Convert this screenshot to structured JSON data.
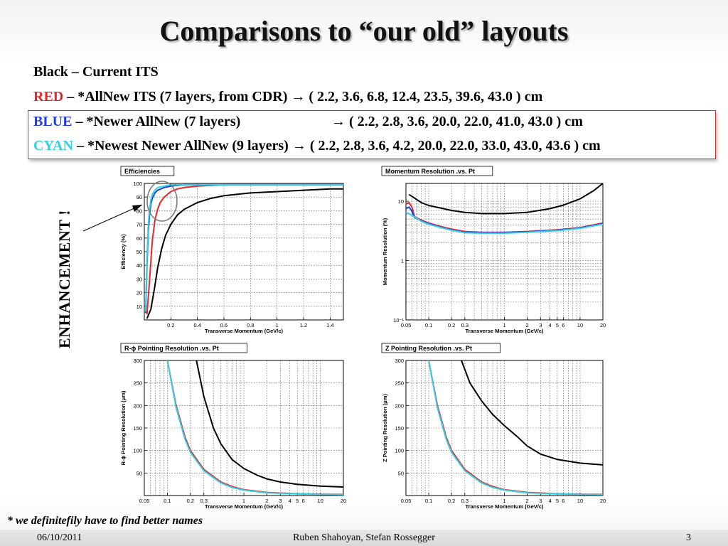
{
  "slide": {
    "title": "Comparisons to “our old” layouts",
    "legend": {
      "black": {
        "name": "Black",
        "text": " – Current ITS"
      },
      "red": {
        "name": "RED",
        "text": " – *AllNew ITS (7 layers, from CDR) ",
        "radii": "( 2.2, 3.6, 6.8,  12.4, 23.5,  39.6, 43.0 ) cm"
      },
      "blue": {
        "name": "BLUE",
        "text": " – *Newer AllNew (7 layers)",
        "radii": "( 2.2, 2.8, 3.6,  20.0, 22.0,  41.0, 43.0 ) cm"
      },
      "cyan": {
        "name": "CYAN",
        "text": " – *Newest Newer AllNew (9 layers) ",
        "radii": "( 2.2, 2.8, 3.6, 4.2,  20.0, 22.0,  33.0,  43.0, 43.6 ) cm"
      },
      "arrow": "→"
    },
    "enhancement": "ENHANCEMENT !",
    "footnote": "* we definitefily have to find better names",
    "footer": {
      "date": "06/10/2011",
      "authors": "Ruben Shahoyan, Stefan Rossegger",
      "page": "3"
    }
  },
  "colors": {
    "black": "#000000",
    "red": "#e8262a",
    "blue": "#1f3fe0",
    "cyan": "#33cfe6",
    "box": "#c8322e"
  },
  "chart_data": [
    {
      "id": "eff",
      "type": "line",
      "title": "Efficiencies",
      "xlabel": "Transverse Momentum (GeV/c)",
      "ylabel": "Efficiency (%)",
      "xlim": [
        0,
        1.5
      ],
      "ylim": [
        0,
        100
      ],
      "xscale": "linear",
      "yscale": "linear",
      "xticks": [
        0.2,
        0.4,
        0.6,
        0.8,
        1,
        1.2,
        1.4
      ],
      "yticks": [
        10,
        20,
        30,
        40,
        50,
        60,
        70,
        80,
        90,
        100
      ],
      "grid": true,
      "series": [
        {
          "color": "black",
          "x": [
            0.02,
            0.05,
            0.08,
            0.1,
            0.13,
            0.16,
            0.2,
            0.25,
            0.3,
            0.4,
            0.5,
            0.6,
            0.8,
            1.0,
            1.2,
            1.4,
            1.5
          ],
          "y": [
            1,
            8,
            25,
            38,
            52,
            62,
            70,
            77,
            81,
            86,
            89,
            91,
            93,
            94,
            95,
            96,
            96
          ]
        },
        {
          "color": "red",
          "x": [
            0.02,
            0.04,
            0.06,
            0.08,
            0.1,
            0.12,
            0.15,
            0.2,
            0.25,
            0.3,
            0.4,
            0.6,
            1.0,
            1.5
          ],
          "y": [
            4,
            30,
            58,
            73,
            81,
            86,
            90,
            94,
            96,
            97,
            98,
            99,
            99,
            99
          ]
        },
        {
          "color": "blue",
          "x": [
            0.01,
            0.02,
            0.03,
            0.04,
            0.05,
            0.06,
            0.08,
            0.1,
            0.15,
            0.2,
            0.3,
            0.5,
            1.0,
            1.5
          ],
          "y": [
            5,
            40,
            65,
            78,
            85,
            89,
            93,
            95,
            97,
            98,
            99,
            99,
            99,
            99
          ]
        },
        {
          "color": "cyan",
          "x": [
            0.01,
            0.02,
            0.03,
            0.04,
            0.05,
            0.06,
            0.08,
            0.1,
            0.15,
            0.2,
            0.3,
            0.5,
            1.0,
            1.5
          ],
          "y": [
            6,
            45,
            70,
            82,
            88,
            92,
            95,
            97,
            98,
            99,
            99,
            99,
            99,
            99
          ]
        }
      ]
    },
    {
      "id": "mom",
      "type": "line",
      "title": "Momentum Resolution .vs. Pt",
      "xlabel": "Transverse Momentum (GeV/c)",
      "ylabel": "Momentum Resolution (%)",
      "xlim": [
        0.05,
        20
      ],
      "ylim": [
        0.1,
        20
      ],
      "xscale": "log",
      "yscale": "log",
      "xticks": [
        0.05,
        0.1,
        0.2,
        0.3,
        1,
        2,
        3,
        4,
        5,
        6,
        10,
        20
      ],
      "xticklabels": [
        "0.05",
        "0.1",
        "0.2",
        "0.3",
        "1",
        "2",
        "3",
        "4",
        "5",
        "6",
        "10",
        "20"
      ],
      "yticks": [
        0.1,
        1,
        10
      ],
      "yticklabels": [
        "10⁻¹",
        "1",
        "10"
      ],
      "grid": true,
      "series": [
        {
          "color": "black",
          "x": [
            0.055,
            0.08,
            0.1,
            0.2,
            0.3,
            0.5,
            1,
            2,
            4,
            6,
            10,
            15,
            20
          ],
          "y": [
            13,
            9.5,
            8.5,
            7,
            6.5,
            6.2,
            6.2,
            6.5,
            7.5,
            8.6,
            11,
            15,
            20
          ]
        },
        {
          "color": "red",
          "x": [
            0.05,
            0.055,
            0.06,
            0.065,
            0.08,
            0.1,
            0.15,
            0.2,
            0.3,
            0.5,
            1,
            2,
            5,
            10,
            20
          ],
          "y": [
            9,
            9.5,
            8,
            5.5,
            4.8,
            4.3,
            3.7,
            3.4,
            3.1,
            3.0,
            3.0,
            3.1,
            3.3,
            3.6,
            4.3
          ]
        },
        {
          "color": "blue",
          "x": [
            0.05,
            0.055,
            0.06,
            0.065,
            0.08,
            0.1,
            0.15,
            0.2,
            0.3,
            0.5,
            1,
            2,
            5,
            10,
            20
          ],
          "y": [
            7.5,
            8,
            6.8,
            5.3,
            4.7,
            4.2,
            3.6,
            3.3,
            3.0,
            2.95,
            2.95,
            3.05,
            3.25,
            3.55,
            4.2
          ]
        },
        {
          "color": "cyan",
          "x": [
            0.05,
            0.06,
            0.08,
            0.1,
            0.15,
            0.2,
            0.3,
            0.5,
            1,
            2,
            5,
            10,
            20
          ],
          "y": [
            6.5,
            5.8,
            4.6,
            4.1,
            3.55,
            3.25,
            2.95,
            2.9,
            2.9,
            3.0,
            3.2,
            3.5,
            4.1
          ]
        }
      ]
    },
    {
      "id": "rphi",
      "type": "line",
      "title": "R-ϕ Pointing Resolution .vs. Pt",
      "xlabel": "Transverse Momentum (GeV/c)",
      "ylabel": "R-ϕ Pointing Resolution (μm)",
      "xlim": [
        0.05,
        20
      ],
      "ylim": [
        0,
        300
      ],
      "xscale": "log",
      "yscale": "linear",
      "xticks": [
        0.05,
        0.1,
        0.2,
        0.3,
        1,
        2,
        3,
        4,
        5,
        6,
        10,
        20
      ],
      "xticklabels": [
        "0.05",
        "0.1",
        "0.2",
        "0.3",
        "1",
        "2",
        "3",
        "4",
        "5",
        "6",
        "10",
        "20"
      ],
      "yticks": [
        50,
        100,
        150,
        200,
        250,
        300
      ],
      "grid": true,
      "series": [
        {
          "color": "black",
          "x": [
            0.24,
            0.3,
            0.4,
            0.5,
            0.7,
            1,
            1.5,
            2,
            3,
            5,
            10,
            20
          ],
          "y": [
            300,
            220,
            150,
            115,
            80,
            60,
            45,
            37,
            30,
            25,
            21,
            19
          ]
        },
        {
          "color": "red",
          "x": [
            0.1,
            0.13,
            0.17,
            0.2,
            0.3,
            0.5,
            0.7,
            1,
            2,
            5,
            10,
            20
          ],
          "y": [
            300,
            200,
            130,
            100,
            58,
            30,
            20,
            13,
            7,
            4,
            3,
            2.5
          ]
        },
        {
          "color": "cyan",
          "x": [
            0.1,
            0.13,
            0.17,
            0.2,
            0.3,
            0.5,
            0.7,
            1,
            2,
            5,
            10,
            20
          ],
          "y": [
            300,
            195,
            125,
            96,
            55,
            28,
            18,
            12,
            6,
            3.5,
            2.5,
            2
          ]
        }
      ]
    },
    {
      "id": "z",
      "type": "line",
      "title": "Z Pointing Resolution .vs. Pt",
      "xlabel": "Transverse Momentum (GeV/c)",
      "ylabel": "Z Pointing Resolution (μm)",
      "xlim": [
        0.05,
        20
      ],
      "ylim": [
        0,
        300
      ],
      "xscale": "log",
      "yscale": "linear",
      "xticks": [
        0.05,
        0.1,
        0.2,
        0.3,
        1,
        2,
        3,
        4,
        5,
        6,
        10,
        20
      ],
      "xticklabels": [
        "0.05",
        "0.1",
        "0.2",
        "0.3",
        "1",
        "2",
        "3",
        "4",
        "5",
        "6",
        "10",
        "20"
      ],
      "yticks": [
        50,
        100,
        150,
        200,
        250,
        300
      ],
      "grid": true,
      "series": [
        {
          "color": "black",
          "x": [
            0.27,
            0.35,
            0.5,
            0.7,
            1,
            1.5,
            2,
            3,
            5,
            10,
            20
          ],
          "y": [
            300,
            250,
            210,
            180,
            155,
            130,
            110,
            92,
            80,
            72,
            68
          ]
        },
        {
          "color": "red",
          "x": [
            0.1,
            0.13,
            0.17,
            0.2,
            0.3,
            0.5,
            0.7,
            1,
            2,
            5,
            10,
            20
          ],
          "y": [
            300,
            200,
            130,
            100,
            58,
            30,
            20,
            13,
            7,
            4,
            3,
            2.5
          ]
        },
        {
          "color": "cyan",
          "x": [
            0.1,
            0.13,
            0.17,
            0.2,
            0.3,
            0.5,
            0.7,
            1,
            2,
            5,
            10,
            20
          ],
          "y": [
            300,
            195,
            125,
            96,
            55,
            28,
            18,
            12,
            6,
            3.5,
            2.5,
            2
          ]
        }
      ]
    }
  ]
}
